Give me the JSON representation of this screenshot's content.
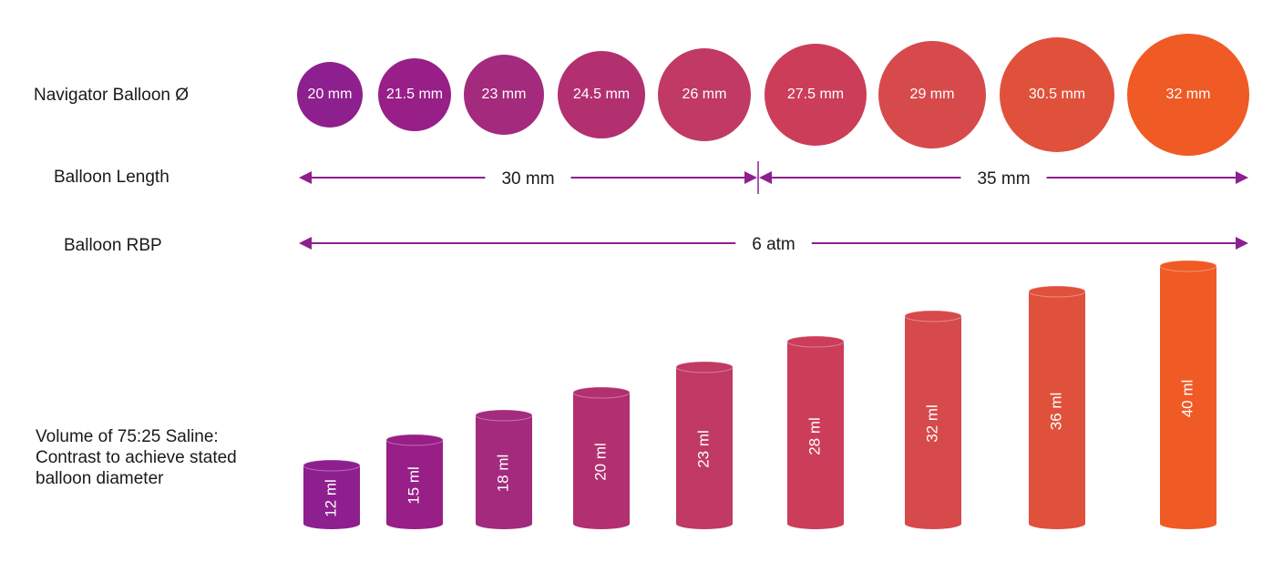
{
  "row_labels": {
    "diameter": "Navigator Balloon Ø",
    "length": "Balloon Length",
    "rbp": "Balloon RBP",
    "volume_lines": [
      "Volume of 75:25 Saline:",
      "Contrast to achieve stated",
      "balloon diameter"
    ]
  },
  "colors": [
    "#8e1f8f",
    "#981f87",
    "#a32a7c",
    "#b23070",
    "#c03a63",
    "#cc3d5a",
    "#d74a4b",
    "#e0513b",
    "#ef5a25"
  ],
  "arrow_color": "#8e1f8f",
  "balloons": [
    {
      "diameter": "20 mm",
      "volume": "12 ml"
    },
    {
      "diameter": "21.5 mm",
      "volume": "15 ml"
    },
    {
      "diameter": "23 mm",
      "volume": "18 ml"
    },
    {
      "diameter": "24.5 mm",
      "volume": "20 ml"
    },
    {
      "diameter": "26 mm",
      "volume": "23 ml"
    },
    {
      "diameter": "27.5 mm",
      "volume": "28 ml"
    },
    {
      "diameter": "29 mm",
      "volume": "32 ml"
    },
    {
      "diameter": "30.5 mm",
      "volume": "36 ml"
    },
    {
      "diameter": "32 mm",
      "volume": "40 ml"
    }
  ],
  "length_segments": [
    {
      "label": "30 mm",
      "from_index": 0,
      "to_index": 4
    },
    {
      "label": "35 mm",
      "from_index": 5,
      "to_index": 8
    }
  ],
  "rbp": {
    "label": "6 atm"
  }
}
